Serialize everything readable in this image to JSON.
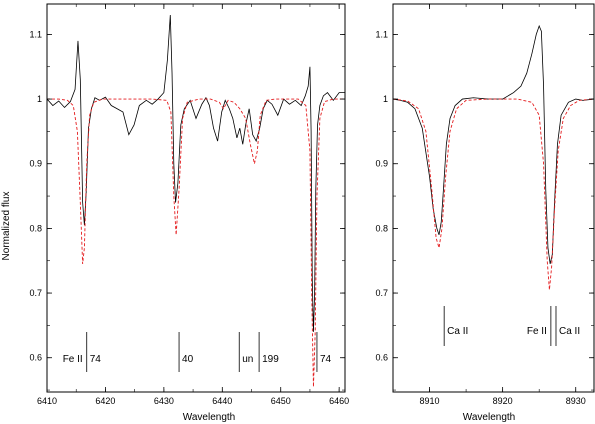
{
  "chart_data": [
    {
      "type": "line",
      "xlabel": "Wavelength",
      "ylabel": "Normalized flux",
      "xlim": [
        6410,
        6461
      ],
      "ylim": [
        0.547,
        1.147
      ],
      "x_ticks": [
        6410,
        6420,
        6430,
        6440,
        6450,
        6460
      ],
      "y_ticks": [
        0.6,
        0.7,
        0.8,
        0.9,
        1,
        1.1
      ],
      "x_tick_labels": [
        "6410",
        "6420",
        "6430",
        "6440",
        "6450",
        "6460"
      ],
      "y_tick_labels": [
        "0.6",
        "0.7",
        "0.8",
        "0.9",
        "1",
        "1.1"
      ],
      "series": [
        {
          "style": "solid",
          "color": "#000000",
          "x": [
            6410,
            6411,
            6412,
            6413,
            6414,
            6414.8,
            6415.3,
            6415.7,
            6416.1,
            6416.4,
            6416.7,
            6417.1,
            6417.6,
            6418.2,
            6419,
            6420,
            6421,
            6422,
            6423,
            6424,
            6424.9,
            6425.8,
            6427,
            6428,
            6429,
            6430,
            6430.6,
            6431.1,
            6431.4,
            6431.7,
            6432,
            6432.4,
            6432.9,
            6433.5,
            6434.5,
            6435.5,
            6436.5,
            6437.2,
            6437.8,
            6438.5,
            6439.2,
            6439.9,
            6440.5,
            6441.2,
            6441.8,
            6442.5,
            6443,
            6443.5,
            6444,
            6444.6,
            6445.2,
            6445.8,
            6446.4,
            6447,
            6447.7,
            6448.5,
            6449.5,
            6450.5,
            6451.5,
            6452.5,
            6453.5,
            6454.2,
            6454.7,
            6455,
            6455.2,
            6455.4,
            6455.6,
            6455.8,
            6456,
            6456.3,
            6456.7,
            6457.3,
            6458,
            6459,
            6460,
            6461
          ],
          "y": [
            1,
            0.99,
            0.997,
            0.987,
            0.996,
            1.015,
            1.09,
            1.03,
            0.84,
            0.805,
            0.855,
            0.955,
            0.985,
            1.002,
            0.998,
            1.003,
            0.99,
            0.985,
            0.98,
            0.945,
            0.96,
            0.99,
            0.998,
            0.992,
            1,
            1.01,
            1.06,
            1.13,
            1.04,
            0.9,
            0.84,
            0.87,
            0.96,
            0.985,
            0.998,
            0.97,
            0.992,
            1.002,
            0.99,
            0.955,
            0.935,
            0.98,
            0.998,
            0.985,
            0.97,
            0.94,
            0.955,
            0.93,
            0.96,
            0.985,
            0.945,
            0.935,
            0.955,
            0.985,
            0.998,
            0.992,
            0.975,
            1,
            0.992,
            0.998,
            0.99,
            1.005,
            1.02,
            1.05,
            0.95,
            0.72,
            0.64,
            0.7,
            0.86,
            0.96,
            0.99,
            1.005,
            1.01,
            0.998,
            1.01,
            1.01
          ]
        },
        {
          "style": "dashed",
          "color": "#e41a1c",
          "x": [
            6410,
            6412,
            6413.5,
            6414.5,
            6415.2,
            6415.7,
            6416.1,
            6416.4,
            6416.8,
            6417.3,
            6418,
            6419.5,
            6422,
            6425,
            6428,
            6430.5,
            6431.2,
            6431.7,
            6432.1,
            6432.6,
            6433.2,
            6434,
            6436,
            6438,
            6439.5,
            6440.2,
            6441,
            6442,
            6443,
            6444,
            6444.8,
            6445.5,
            6446,
            6446.5,
            6447.5,
            6449,
            6451,
            6453,
            6454.3,
            6455,
            6455.3,
            6455.6,
            6455.9,
            6456.2,
            6456.7,
            6457.5,
            6459,
            6461
          ],
          "y": [
            1,
            1,
            0.998,
            0.99,
            0.95,
            0.84,
            0.745,
            0.77,
            0.9,
            0.975,
            0.995,
            1,
            1,
            1,
            1,
            0.998,
            0.98,
            0.85,
            0.79,
            0.86,
            0.97,
            0.995,
            1,
            1,
            0.995,
            0.985,
            0.998,
            0.995,
            0.985,
            0.97,
            0.93,
            0.9,
            0.92,
            0.975,
            0.998,
            1,
            1,
            1,
            0.99,
            0.92,
            0.7,
            0.555,
            0.64,
            0.85,
            0.97,
            0.996,
            1,
            1
          ]
        }
      ],
      "annotations": [
        {
          "x": 6416.8,
          "label_left": "Fe II",
          "label_right": "74"
        },
        {
          "x": 6432.6,
          "label_left": "",
          "label_right": "40"
        },
        {
          "x": 6442.9,
          "label_left": "",
          "label_right": "un"
        },
        {
          "x": 6446.3,
          "label_left": "",
          "label_right": "199"
        },
        {
          "x": 6456.2,
          "label_left": "",
          "label_right": "74"
        }
      ]
    },
    {
      "type": "line",
      "xlabel": "Wavelength",
      "ylabel": "",
      "xlim": [
        8905,
        8932.5
      ],
      "ylim": [
        0.547,
        1.147
      ],
      "x_ticks": [
        8910,
        8920,
        8930
      ],
      "y_ticks": [
        0.6,
        0.7,
        0.8,
        0.9,
        1,
        1.1
      ],
      "x_tick_labels": [
        "8910",
        "8920",
        "8930"
      ],
      "y_tick_labels": [
        "0.6",
        "0.7",
        "0.8",
        "0.9",
        "1",
        "1.1"
      ],
      "series": [
        {
          "style": "solid",
          "color": "#000000",
          "x": [
            8905,
            8906,
            8907,
            8908,
            8909,
            8910,
            8910.5,
            8911,
            8911.3,
            8911.6,
            8911.9,
            8912.3,
            8912.8,
            8913.5,
            8914.5,
            8916,
            8918,
            8920,
            8921.5,
            8922.5,
            8923.3,
            8924,
            8924.6,
            8925,
            8925.3,
            8925.6,
            8925.9,
            8926.2,
            8926.5,
            8926.8,
            8927.1,
            8927.5,
            8928,
            8929,
            8930,
            8931,
            8932.5
          ],
          "y": [
            1,
            0.998,
            0.995,
            0.985,
            0.955,
            0.88,
            0.83,
            0.8,
            0.79,
            0.81,
            0.86,
            0.93,
            0.97,
            0.99,
            1,
            1.002,
            1,
            1,
            1.01,
            1.02,
            1.04,
            1.07,
            1.1,
            1.113,
            1.105,
            1.02,
            0.86,
            0.77,
            0.745,
            0.76,
            0.84,
            0.93,
            0.975,
            0.995,
            1,
            0.998,
            1
          ]
        },
        {
          "style": "dashed",
          "color": "#e41a1c",
          "x": [
            8905,
            8907,
            8908.5,
            8909.5,
            8910.3,
            8910.9,
            8911.3,
            8911.7,
            8912.2,
            8912.8,
            8913.7,
            8915,
            8918,
            8922,
            8924,
            8925,
            8925.6,
            8926.1,
            8926.4,
            8926.7,
            8927.1,
            8927.6,
            8928.3,
            8929.3,
            8930.5,
            8932.5
          ],
          "y": [
            1,
            0.997,
            0.985,
            0.95,
            0.86,
            0.785,
            0.77,
            0.8,
            0.88,
            0.95,
            0.985,
            0.998,
            1,
            1,
            0.995,
            0.975,
            0.9,
            0.75,
            0.705,
            0.74,
            0.83,
            0.92,
            0.97,
            0.99,
            0.998,
            1
          ]
        }
      ],
      "annotations": [
        {
          "x": 8912,
          "label_left": "",
          "label_right": "Ca II"
        },
        {
          "x": 8926.6,
          "label_left": "Fe II",
          "label_right": ""
        },
        {
          "x": 8927.3,
          "label_left": "",
          "label_right": "Ca II"
        }
      ]
    }
  ]
}
